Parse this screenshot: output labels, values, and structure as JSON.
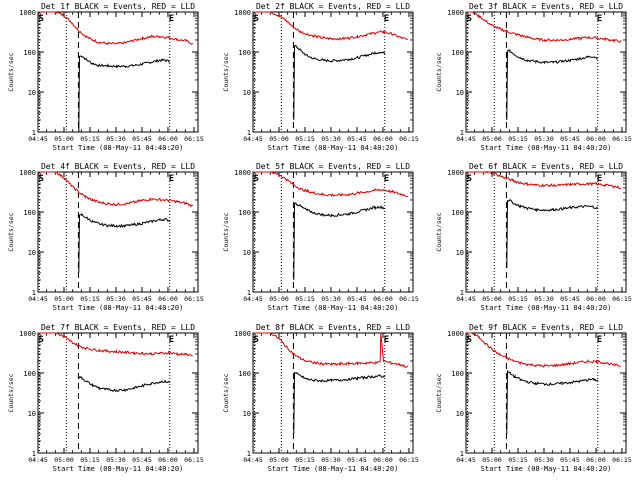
{
  "figure": {
    "background": "#ffffff",
    "events_color": "#000000",
    "lld_color": "#e00000"
  },
  "chart_data": [
    {
      "type": "line",
      "title": "Det 1f BLACK = Events, RED = LLD",
      "xlabel": "Start Time (08-May-11 04:40:20)",
      "ylabel": "Counts/sec",
      "ylog": true,
      "ylim": [
        1,
        1000
      ],
      "y_ticks": [
        "1",
        "10",
        "100",
        "1000"
      ],
      "x_ticks": [
        "04:45",
        "05:00",
        "05:15",
        "05:30",
        "05:45",
        "06:00",
        "06:15"
      ],
      "xlim_minutes": [
        4.67,
        97.0
      ],
      "markers": {
        "S": 5.5,
        "E": 80.7
      },
      "dotted_lines": [
        5.5,
        21.0,
        80.7
      ],
      "dashed_line": 28.0,
      "series": [
        {
          "name": "Events",
          "x": [
            28.2,
            28.6,
            30,
            33,
            36,
            40,
            45,
            50,
            55,
            60,
            65,
            70,
            75,
            78,
            80.7
          ],
          "y": [
            1,
            78,
            80,
            62,
            52,
            46,
            45,
            44,
            44,
            46,
            50,
            56,
            62,
            62,
            58
          ]
        },
        {
          "name": "LLD",
          "x": [
            4.8,
            10,
            15,
            20,
            24,
            28,
            32,
            36,
            40,
            45,
            50,
            55,
            60,
            65,
            70,
            75,
            80,
            85,
            90,
            94
          ],
          "y": [
            1000,
            1000,
            1000,
            800,
            550,
            350,
            250,
            200,
            175,
            162,
            160,
            170,
            195,
            220,
            240,
            245,
            230,
            205,
            190,
            160
          ]
        }
      ]
    },
    {
      "type": "line",
      "title": "Det 2f BLACK = Events, RED = LLD",
      "xlabel": "Start Time (08-May-11 04:40:20)",
      "ylabel": "Counts/sec",
      "ylog": true,
      "ylim": [
        1,
        1000
      ],
      "y_ticks": [
        "1",
        "10",
        "100",
        "1000"
      ],
      "x_ticks": [
        "04:45",
        "05:00",
        "05:15",
        "05:30",
        "05:45",
        "06:00",
        "06:15"
      ],
      "xlim_minutes": [
        4.67,
        97.0
      ],
      "markers": {
        "S": 5.5,
        "E": 80.7
      },
      "dotted_lines": [
        5.5,
        21.0,
        80.7
      ],
      "dashed_line": 28.0,
      "series": [
        {
          "name": "Events",
          "x": [
            28.2,
            28.6,
            30,
            33,
            36,
            40,
            45,
            50,
            55,
            60,
            65,
            70,
            75,
            78,
            80.7
          ],
          "y": [
            2,
            140,
            135,
            100,
            80,
            68,
            62,
            60,
            62,
            66,
            72,
            82,
            95,
            100,
            92
          ]
        },
        {
          "name": "LLD",
          "x": [
            4.8,
            10,
            15,
            20,
            24,
            28,
            32,
            36,
            40,
            45,
            50,
            55,
            60,
            65,
            70,
            75,
            80,
            85,
            90,
            94
          ],
          "y": [
            1000,
            1000,
            1000,
            800,
            600,
            420,
            320,
            280,
            250,
            225,
            215,
            215,
            225,
            245,
            270,
            300,
            320,
            280,
            230,
            200
          ]
        }
      ]
    },
    {
      "type": "line",
      "title": "Det 3f BLACK = Events, RED = LLD",
      "xlabel": "Start Time (08-May-11 04:40:20)",
      "ylabel": "Counts/sec",
      "ylog": true,
      "ylim": [
        1,
        1000
      ],
      "y_ticks": [
        "1",
        "10",
        "100",
        "1000"
      ],
      "x_ticks": [
        "04:45",
        "05:00",
        "05:15",
        "05:30",
        "05:45",
        "06:00",
        "06:15"
      ],
      "xlim_minutes": [
        4.67,
        97.0
      ],
      "markers": {
        "S": 5.5,
        "E": 80.7
      },
      "dotted_lines": [
        5.5,
        21.0,
        80.7
      ],
      "dashed_line": 28.0,
      "series": [
        {
          "name": "Events",
          "x": [
            28.2,
            28.6,
            30,
            33,
            36,
            40,
            45,
            50,
            55,
            60,
            65,
            70,
            75,
            78,
            80.7
          ],
          "y": [
            2,
            110,
            105,
            85,
            72,
            62,
            58,
            55,
            55,
            58,
            62,
            68,
            75,
            78,
            70
          ]
        },
        {
          "name": "LLD",
          "x": [
            4.8,
            8,
            12,
            16,
            20,
            24,
            28,
            32,
            36,
            40,
            45,
            50,
            55,
            60,
            65,
            70,
            75,
            80,
            85,
            90,
            94
          ],
          "y": [
            1000,
            1000,
            800,
            600,
            450,
            380,
            330,
            290,
            260,
            235,
            210,
            200,
            198,
            200,
            210,
            220,
            230,
            225,
            210,
            195,
            185
          ]
        }
      ]
    },
    {
      "type": "line",
      "title": "Det 4f BLACK = Events, RED = LLD",
      "xlabel": "Start Time (08-May-11 04:40:20)",
      "ylabel": "Counts/sec",
      "ylog": true,
      "ylim": [
        1,
        1000
      ],
      "y_ticks": [
        "1",
        "10",
        "100",
        "1000"
      ],
      "x_ticks": [
        "04:45",
        "05:00",
        "05:15",
        "05:30",
        "05:45",
        "06:00",
        "06:15"
      ],
      "xlim_minutes": [
        4.67,
        97.0
      ],
      "markers": {
        "S": 5.5,
        "E": 80.7
      },
      "dotted_lines": [
        5.5,
        21.0,
        80.7
      ],
      "dashed_line": 28.0,
      "series": [
        {
          "name": "Events",
          "x": [
            28.2,
            28.6,
            30,
            33,
            36,
            40,
            45,
            50,
            55,
            60,
            65,
            70,
            75,
            78,
            80.7
          ],
          "y": [
            3,
            80,
            85,
            70,
            58,
            50,
            46,
            45,
            45,
            48,
            52,
            58,
            64,
            66,
            60
          ]
        },
        {
          "name": "LLD",
          "x": [
            4.8,
            10,
            15,
            20,
            24,
            28,
            32,
            36,
            40,
            45,
            50,
            55,
            60,
            65,
            70,
            75,
            80,
            85,
            90,
            94
          ],
          "y": [
            1000,
            1000,
            1000,
            700,
            450,
            320,
            240,
            200,
            175,
            160,
            155,
            160,
            175,
            195,
            210,
            205,
            195,
            180,
            165,
            140
          ]
        }
      ]
    },
    {
      "type": "line",
      "title": "Det 5f BLACK = Events, RED = LLD",
      "xlabel": "Start Time (08-May-11 04:40:20)",
      "ylabel": "Counts/sec",
      "ylog": true,
      "ylim": [
        1,
        1000
      ],
      "y_ticks": [
        "1",
        "10",
        "100",
        "1000"
      ],
      "x_ticks": [
        "04:45",
        "05:00",
        "05:15",
        "05:30",
        "05:45",
        "06:00",
        "06:15"
      ],
      "xlim_minutes": [
        4.67,
        97.0
      ],
      "markers": {
        "S": 5.5,
        "E": 80.7
      },
      "dotted_lines": [
        5.5,
        21.0,
        80.7
      ],
      "dashed_line": 28.0,
      "series": [
        {
          "name": "Events",
          "x": [
            28.2,
            28.6,
            30,
            33,
            36,
            40,
            45,
            50,
            55,
            60,
            65,
            70,
            75,
            78,
            80.7
          ],
          "y": [
            2,
            170,
            160,
            130,
            110,
            95,
            85,
            82,
            85,
            90,
            100,
            115,
            130,
            135,
            125
          ]
        },
        {
          "name": "LLD",
          "x": [
            4.8,
            10,
            15,
            20,
            24,
            28,
            32,
            36,
            40,
            45,
            50,
            55,
            60,
            65,
            70,
            75,
            80,
            85,
            90,
            94
          ],
          "y": [
            1000,
            1000,
            1000,
            850,
            650,
            480,
            380,
            330,
            300,
            275,
            265,
            265,
            275,
            295,
            320,
            350,
            360,
            320,
            280,
            250
          ]
        }
      ]
    },
    {
      "type": "line",
      "title": "Det 6f BLACK = Events, RED = LLD",
      "xlabel": "Start Time (08-May-11 04:40:20)",
      "ylabel": "Counts/sec",
      "ylog": true,
      "ylim": [
        1,
        1000
      ],
      "y_ticks": [
        "1",
        "10",
        "100",
        "1000"
      ],
      "x_ticks": [
        "04:45",
        "05:00",
        "05:15",
        "05:30",
        "05:45",
        "06:00",
        "06:15"
      ],
      "xlim_minutes": [
        4.67,
        97.0
      ],
      "markers": {
        "S": 5.5,
        "E": 80.7
      },
      "dotted_lines": [
        5.5,
        21.0,
        80.7
      ],
      "dashed_line": 28.0,
      "series": [
        {
          "name": "Events",
          "x": [
            28.2,
            28.6,
            30,
            33,
            36,
            40,
            45,
            50,
            55,
            60,
            65,
            70,
            75,
            78,
            80.7
          ],
          "y": [
            4,
            200,
            190,
            160,
            140,
            125,
            115,
            112,
            115,
            120,
            128,
            135,
            138,
            135,
            122
          ]
        },
        {
          "name": "LLD",
          "x": [
            4.8,
            10,
            15,
            20,
            24,
            28,
            32,
            36,
            40,
            45,
            50,
            55,
            60,
            65,
            70,
            75,
            80,
            85,
            90,
            94
          ],
          "y": [
            1000,
            1000,
            1000,
            950,
            800,
            700,
            600,
            540,
            500,
            470,
            460,
            460,
            470,
            490,
            500,
            510,
            500,
            470,
            440,
            400
          ]
        }
      ]
    },
    {
      "type": "line",
      "title": "Det 7f BLACK = Events, RED = LLD",
      "xlabel": "Start Time (08-May-11 04:40:20)",
      "ylabel": "Counts/sec",
      "ylog": true,
      "ylim": [
        1,
        1000
      ],
      "y_ticks": [
        "1",
        "10",
        "100",
        "1000"
      ],
      "x_ticks": [
        "04:45",
        "05:00",
        "05:15",
        "05:30",
        "05:45",
        "06:00",
        "06:15"
      ],
      "xlim_minutes": [
        4.67,
        97.0
      ],
      "markers": {
        "S": 5.5,
        "E": 80.7
      },
      "dotted_lines": [
        5.5,
        21.0,
        80.7
      ],
      "dashed_line": 28.0,
      "series": [
        {
          "name": "Events",
          "x": [
            28.2,
            30,
            33,
            36,
            40,
            45,
            50,
            55,
            60,
            65,
            70,
            75,
            78,
            80.7
          ],
          "y": [
            80,
            75,
            60,
            50,
            42,
            38,
            37,
            38,
            42,
            48,
            55,
            60,
            62,
            58
          ]
        },
        {
          "name": "LLD",
          "x": [
            4.8,
            10,
            15,
            20,
            24,
            28,
            32,
            36,
            40,
            45,
            50,
            55,
            60,
            65,
            70,
            75,
            80,
            85,
            90,
            94
          ],
          "y": [
            1000,
            1000,
            1000,
            800,
            600,
            480,
            420,
            390,
            370,
            350,
            340,
            330,
            320,
            310,
            300,
            310,
            320,
            300,
            290,
            280
          ]
        }
      ]
    },
    {
      "type": "line",
      "title": "Det 8f BLACK = Events, RED = LLD",
      "xlabel": "Start Time (08-May-11 04:40:20)",
      "ylabel": "Counts/sec",
      "ylog": true,
      "ylim": [
        1,
        1000
      ],
      "y_ticks": [
        "1",
        "10",
        "100",
        "1000"
      ],
      "x_ticks": [
        "04:45",
        "05:00",
        "05:15",
        "05:30",
        "05:45",
        "06:00",
        "06:15"
      ],
      "xlim_minutes": [
        4.67,
        97.0
      ],
      "markers": {
        "S": 5.5,
        "E": 80.7
      },
      "dotted_lines": [
        5.5,
        21.0,
        80.7
      ],
      "dashed_line": 28.0,
      "series": [
        {
          "name": "Events",
          "x": [
            28.2,
            28.6,
            30,
            33,
            36,
            40,
            45,
            50,
            55,
            60,
            65,
            70,
            75,
            78,
            80.7
          ],
          "y": [
            3,
            100,
            95,
            80,
            70,
            65,
            64,
            65,
            67,
            70,
            74,
            78,
            82,
            84,
            80
          ]
        },
        {
          "name": "LLD",
          "x": [
            4.8,
            10,
            15,
            20,
            24,
            28,
            32,
            36,
            40,
            45,
            50,
            55,
            60,
            65,
            70,
            75,
            78,
            78.4,
            80,
            85,
            90,
            94
          ],
          "y": [
            1000,
            1000,
            1000,
            700,
            450,
            300,
            230,
            195,
            180,
            170,
            165,
            168,
            172,
            175,
            178,
            180,
            185,
            1000,
            200,
            175,
            160,
            140
          ]
        }
      ]
    },
    {
      "type": "line",
      "title": "Det 9f BLACK = Events, RED = LLD",
      "xlabel": "Start Time (08-May-11 04:40:20)",
      "ylabel": "Counts/sec",
      "ylog": true,
      "ylim": [
        1,
        1000
      ],
      "y_ticks": [
        "1",
        "10",
        "100",
        "1000"
      ],
      "x_ticks": [
        "04:45",
        "05:00",
        "05:15",
        "05:30",
        "05:45",
        "06:00",
        "06:15"
      ],
      "xlim_minutes": [
        4.67,
        97.0
      ],
      "markers": {
        "S": 5.5,
        "E": 80.7
      },
      "dotted_lines": [
        5.5,
        21.0,
        80.7
      ],
      "dashed_line": 28.0,
      "series": [
        {
          "name": "Events",
          "x": [
            28.2,
            28.6,
            30,
            33,
            36,
            40,
            45,
            50,
            55,
            60,
            65,
            70,
            75,
            78,
            80.7
          ],
          "y": [
            3,
            110,
            100,
            80,
            68,
            60,
            55,
            53,
            53,
            55,
            58,
            62,
            67,
            70,
            65
          ]
        },
        {
          "name": "LLD",
          "x": [
            4.8,
            8,
            12,
            16,
            20,
            24,
            28,
            32,
            36,
            40,
            45,
            50,
            55,
            60,
            65,
            70,
            75,
            80,
            85,
            90,
            94
          ],
          "y": [
            1000,
            1000,
            800,
            550,
            380,
            290,
            240,
            200,
            180,
            165,
            155,
            150,
            152,
            160,
            172,
            185,
            195,
            195,
            180,
            160,
            150
          ]
        }
      ]
    }
  ]
}
